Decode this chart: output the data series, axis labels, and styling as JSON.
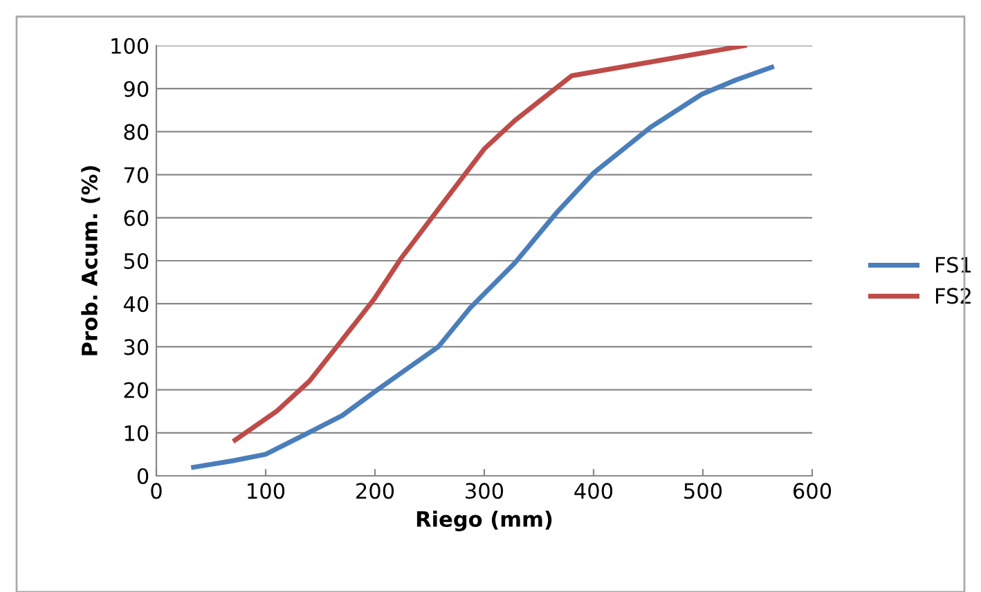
{
  "chart_data": {
    "type": "line",
    "xlabel": "Riego (mm)",
    "ylabel": "Prob. Acum. (%)",
    "xlim": [
      0,
      600
    ],
    "xticks": [
      0,
      100,
      200,
      300,
      400,
      500,
      600
    ],
    "ylim": [
      0,
      100
    ],
    "yticks": [
      0,
      10,
      20,
      30,
      40,
      50,
      60,
      70,
      80,
      90,
      100
    ],
    "grid": "y",
    "legend": "right",
    "marker": "none",
    "line_style": "solid",
    "series": [
      {
        "name": "FS1",
        "color": "#4a7ebb",
        "x": [
          34,
          70,
          100,
          139,
          170,
          200,
          230,
          258,
          287,
          328,
          367,
          400,
          452,
          499,
          530,
          563
        ],
        "values": [
          2,
          3.5,
          5,
          10,
          14,
          19.6,
          25,
          30,
          39,
          49.5,
          61.4,
          70.4,
          81,
          88.7,
          92,
          95
        ]
      },
      {
        "name": "FS2",
        "color": "#be4b48",
        "x": [
          72,
          110,
          140,
          165,
          199,
          224,
          258,
          300,
          328,
          380,
          538
        ],
        "values": [
          8.3,
          15,
          22,
          30,
          41,
          50.6,
          62,
          76,
          82.6,
          93,
          100
        ]
      }
    ]
  }
}
